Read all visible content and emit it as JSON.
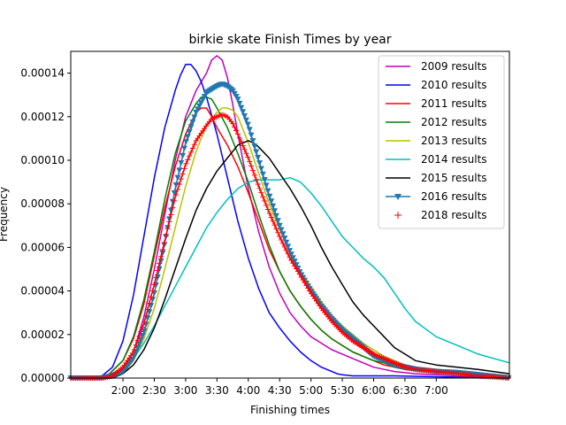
{
  "chart_data": {
    "type": "line",
    "title": "birkie skate Finish Times by year",
    "xlabel": "Finishing times",
    "ylabel": "Frequency",
    "x_unit": "minutes",
    "xlim": [
      70,
      490
    ],
    "ylim": [
      0,
      0.00015
    ],
    "grid": false,
    "legend_position": "top-right",
    "x_ticks": [
      {
        "value": 120,
        "label": "2:00"
      },
      {
        "value": 150,
        "label": "2:30"
      },
      {
        "value": 180,
        "label": "3:00"
      },
      {
        "value": 210,
        "label": "3:30"
      },
      {
        "value": 240,
        "label": "4:00"
      },
      {
        "value": 270,
        "label": "4:30"
      },
      {
        "value": 300,
        "label": "5:00"
      },
      {
        "value": 330,
        "label": "5:30"
      },
      {
        "value": 360,
        "label": "6:00"
      },
      {
        "value": 390,
        "label": "6:30"
      },
      {
        "value": 420,
        "label": "7:00"
      }
    ],
    "y_ticks": [
      {
        "value": 0,
        "label": "0.00000"
      },
      {
        "value": 2e-05,
        "label": "0.00002"
      },
      {
        "value": 4e-05,
        "label": "0.00004"
      },
      {
        "value": 6e-05,
        "label": "0.00006"
      },
      {
        "value": 8e-05,
        "label": "0.00008"
      },
      {
        "value": 0.0001,
        "label": "0.00010"
      },
      {
        "value": 0.00012,
        "label": "0.00012"
      },
      {
        "value": 0.00014,
        "label": "0.00014"
      }
    ],
    "series": [
      {
        "name": "2009 results",
        "color": "#bf00bf",
        "marker": "none",
        "x": [
          70,
          90,
          110,
          120,
          130,
          140,
          150,
          160,
          170,
          180,
          190,
          200,
          205,
          210,
          215,
          220,
          225,
          230,
          240,
          250,
          260,
          270,
          280,
          290,
          300,
          310,
          320,
          330,
          340,
          350,
          360,
          370,
          380,
          390,
          400,
          420,
          440,
          460,
          490
        ],
        "y": [
          0,
          0,
          1e-06,
          4e-06,
          1.2e-05,
          2.8e-05,
          5e-05,
          7.5e-05,
          0.0001,
          0.00012,
          0.000132,
          0.00014,
          0.000146,
          0.000148,
          0.000146,
          0.000138,
          0.000126,
          0.000112,
          8.7e-05,
          6.7e-05,
          5.1e-05,
          3.9e-05,
          3e-05,
          2.4e-05,
          1.9e-05,
          1.6e-05,
          1.3e-05,
          1.1e-05,
          9e-06,
          7e-06,
          5e-06,
          4e-06,
          3e-06,
          2.5e-06,
          2e-06,
          1.5e-06,
          1e-06,
          5e-07,
          0
        ]
      },
      {
        "name": "2010 results",
        "color": "#0000ff",
        "marker": "none",
        "x": [
          70,
          90,
          100,
          110,
          120,
          130,
          140,
          150,
          160,
          170,
          175,
          180,
          185,
          190,
          195,
          200,
          210,
          220,
          230,
          240,
          250,
          260,
          270,
          280,
          290,
          300,
          310,
          320,
          325,
          330,
          340,
          350,
          360,
          370,
          380,
          400,
          420,
          440,
          460,
          490
        ],
        "y": [
          0,
          0,
          1e-06,
          5e-06,
          1.7e-05,
          3.8e-05,
          6.5e-05,
          9.2e-05,
          0.000115,
          0.000132,
          0.000139,
          0.000144,
          0.000144,
          0.000141,
          0.000136,
          0.000129,
          0.000112,
          9.2e-05,
          7.2e-05,
          5.5e-05,
          4.1e-05,
          3e-05,
          2.3e-05,
          1.7e-05,
          1.2e-05,
          8e-06,
          5e-06,
          3e-06,
          2e-06,
          1.5e-06,
          1e-06,
          1e-06,
          1e-06,
          1e-06,
          1e-06,
          8e-07,
          6e-07,
          4e-07,
          2e-07,
          0
        ]
      },
      {
        "name": "2011 results",
        "color": "#ff0000",
        "marker": "none",
        "x": [
          70,
          90,
          105,
          120,
          130,
          140,
          150,
          160,
          170,
          180,
          190,
          195,
          200,
          205,
          210,
          220,
          230,
          240,
          250,
          260,
          270,
          280,
          290,
          300,
          310,
          320,
          330,
          340,
          350,
          360,
          370,
          380,
          390,
          400,
          410,
          420,
          440,
          460,
          490
        ],
        "y": [
          0,
          0,
          1e-06,
          8e-06,
          1.8e-05,
          3.4e-05,
          5.6e-05,
          7.8e-05,
          9.7e-05,
          0.000112,
          0.000122,
          0.000124,
          0.000124,
          0.00012,
          0.000115,
          0.000107,
          9.7e-05,
          8.5e-05,
          7.2e-05,
          5.9e-05,
          4.9e-05,
          4e-05,
          3.3e-05,
          2.7e-05,
          2.2e-05,
          1.8e-05,
          1.5e-05,
          1.2e-05,
          1e-05,
          8e-06,
          6e-06,
          5e-06,
          4e-06,
          3.5e-06,
          3e-06,
          2.5e-06,
          2e-06,
          1e-06,
          0
        ]
      },
      {
        "name": "2012 results",
        "color": "#008000",
        "marker": "none",
        "x": [
          70,
          90,
          105,
          120,
          130,
          140,
          150,
          160,
          170,
          180,
          190,
          195,
          200,
          205,
          210,
          220,
          230,
          240,
          250,
          260,
          270,
          280,
          290,
          300,
          310,
          320,
          330,
          340,
          350,
          360,
          370,
          380,
          390,
          400,
          420,
          440,
          460,
          490
        ],
        "y": [
          0,
          0,
          1e-06,
          8e-06,
          1.9e-05,
          3.6e-05,
          5.8e-05,
          8.2e-05,
          0.000103,
          0.000118,
          0.000126,
          0.000129,
          0.000129,
          0.000128,
          0.000124,
          0.000115,
          0.000103,
          9e-05,
          7.5e-05,
          6.1e-05,
          4.9e-05,
          4e-05,
          3.3e-05,
          2.7e-05,
          2.2e-05,
          1.8e-05,
          1.5e-05,
          1.2e-05,
          1e-05,
          8e-06,
          7e-06,
          5e-06,
          4e-06,
          3.5e-06,
          2.5e-06,
          2e-06,
          1e-06,
          0
        ]
      },
      {
        "name": "2013 results",
        "color": "#bfbf00",
        "marker": "none",
        "x": [
          70,
          100,
          120,
          130,
          140,
          150,
          160,
          170,
          180,
          190,
          200,
          210,
          215,
          220,
          225,
          230,
          240,
          250,
          260,
          270,
          280,
          290,
          300,
          310,
          320,
          330,
          340,
          350,
          360,
          370,
          380,
          390,
          400,
          420,
          440,
          460,
          490
        ],
        "y": [
          0,
          0,
          2e-06,
          8e-06,
          1.8e-05,
          3.2e-05,
          5e-05,
          6.9e-05,
          8.8e-05,
          0.000104,
          0.000116,
          0.000122,
          0.000124,
          0.000124,
          0.000123,
          0.00012,
          0.000108,
          9.4e-05,
          8e-05,
          6.8e-05,
          5.8e-05,
          4.9e-05,
          4.2e-05,
          3.5e-05,
          2.9e-05,
          2.4e-05,
          2e-05,
          1.6e-05,
          1.3e-05,
          1e-05,
          8e-06,
          6e-06,
          5e-06,
          3.5e-06,
          2.5e-06,
          1.5e-06,
          0
        ]
      },
      {
        "name": "2014 results",
        "color": "#00bfbf",
        "marker": "none",
        "x": [
          70,
          90,
          110,
          120,
          130,
          140,
          150,
          160,
          170,
          180,
          190,
          200,
          210,
          220,
          230,
          240,
          250,
          260,
          270,
          280,
          290,
          300,
          310,
          320,
          330,
          340,
          350,
          360,
          370,
          380,
          390,
          400,
          420,
          440,
          460,
          490
        ],
        "y": [
          0,
          0,
          1e-06,
          4e-06,
          9e-06,
          1.6e-05,
          2.4e-05,
          3.3e-05,
          4.2e-05,
          5.1e-05,
          6e-05,
          6.9e-05,
          7.6e-05,
          8.2e-05,
          8.7e-05,
          9e-05,
          9.1e-05,
          9.1e-05,
          9.1e-05,
          9.2e-05,
          9e-05,
          8.5e-05,
          7.9e-05,
          7.2e-05,
          6.5e-05,
          6e-05,
          5.5e-05,
          5.1e-05,
          4.6e-05,
          3.9e-05,
          3.2e-05,
          2.6e-05,
          1.9e-05,
          1.5e-05,
          1.1e-05,
          7e-06
        ]
      },
      {
        "name": "2015 results",
        "color": "#000000",
        "marker": "none",
        "x": [
          70,
          110,
          120,
          130,
          140,
          150,
          160,
          170,
          180,
          190,
          200,
          210,
          220,
          230,
          235,
          240,
          245,
          250,
          260,
          270,
          280,
          290,
          300,
          310,
          320,
          330,
          340,
          350,
          360,
          370,
          380,
          390,
          400,
          410,
          420,
          440,
          460,
          490
        ],
        "y": [
          0,
          0,
          2e-06,
          6e-06,
          1.3e-05,
          2.3e-05,
          3.6e-05,
          5e-05,
          6.4e-05,
          7.7e-05,
          8.7e-05,
          9.5e-05,
          0.000101,
          0.000107,
          0.000108,
          0.000109,
          0.000108,
          0.000106,
          0.000101,
          9.4e-05,
          8.7e-05,
          7.9e-05,
          7e-05,
          6e-05,
          5.1e-05,
          4.3e-05,
          3.5e-05,
          2.9e-05,
          2.4e-05,
          1.9e-05,
          1.4e-05,
          1.1e-05,
          8e-06,
          7e-06,
          6e-06,
          5e-06,
          4e-06,
          2e-06
        ]
      },
      {
        "name": "2016 results",
        "color": "#1f77b4",
        "marker": "triangle-down",
        "x": [
          70,
          100,
          110,
          120,
          130,
          140,
          150,
          160,
          170,
          180,
          190,
          200,
          210,
          215,
          220,
          225,
          230,
          240,
          250,
          260,
          270,
          280,
          290,
          300,
          310,
          320,
          330,
          340,
          350,
          360,
          370,
          380,
          390,
          400,
          410,
          420,
          440,
          460,
          490
        ],
        "y": [
          0,
          0,
          1e-06,
          3e-06,
          9e-06,
          2.1e-05,
          3.9e-05,
          6.2e-05,
          8.7e-05,
          0.000108,
          0.000122,
          0.000131,
          0.000134,
          0.000135,
          0.000134,
          0.000132,
          0.000128,
          0.000116,
          0.0001,
          8.4e-05,
          7e-05,
          5.8e-05,
          4.8e-05,
          4e-05,
          3.3e-05,
          2.7e-05,
          2.2e-05,
          1.8e-05,
          1.4e-05,
          1e-05,
          8e-06,
          6e-06,
          5e-06,
          4e-06,
          3.5e-06,
          3e-06,
          2.5e-06,
          1.5e-06,
          0
        ]
      },
      {
        "name": "2018 results",
        "color": "#ff0000",
        "marker": "plus",
        "x": [
          70,
          100,
          110,
          120,
          130,
          140,
          150,
          160,
          170,
          180,
          190,
          200,
          205,
          210,
          215,
          220,
          225,
          230,
          240,
          250,
          260,
          270,
          280,
          290,
          300,
          310,
          320,
          330,
          340,
          350,
          360,
          370,
          380,
          390,
          400,
          410,
          420,
          440,
          460,
          490
        ],
        "y": [
          0,
          0,
          1e-06,
          5e-06,
          1.2e-05,
          2.5e-05,
          4.3e-05,
          6.3e-05,
          8.3e-05,
          9.8e-05,
          0.000109,
          0.000116,
          0.000119,
          0.00012,
          0.000121,
          0.00012,
          0.000117,
          0.000112,
          0.000101,
          8.8e-05,
          7.6e-05,
          6.5e-05,
          5.5e-05,
          4.7e-05,
          3.9e-05,
          3.2e-05,
          2.6e-05,
          2.1e-05,
          1.7e-05,
          1.4e-05,
          1.1e-05,
          9e-06,
          7e-06,
          5e-06,
          4e-06,
          3.5e-06,
          3e-06,
          2e-06,
          1e-06,
          0
        ]
      }
    ]
  }
}
